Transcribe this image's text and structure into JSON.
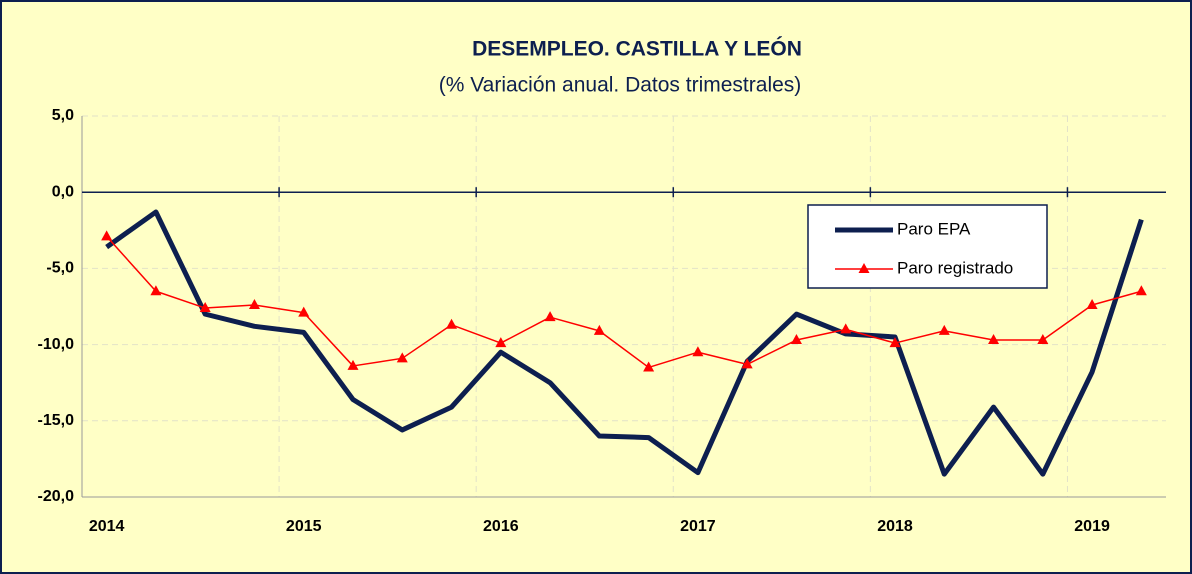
{
  "chart_data": {
    "type": "line",
    "title": "DESEMPLEO.  CASTILLA Y LEÓN",
    "subtitle": "(% Variación anual. Datos trimestrales)",
    "categories": [
      "2014",
      null,
      null,
      null,
      "2015",
      null,
      null,
      null,
      "2016",
      null,
      null,
      null,
      "2017",
      null,
      null,
      null,
      "2018",
      null,
      null,
      null,
      "2019",
      null
    ],
    "series": [
      {
        "name": "Paro EPA",
        "color": "#0d1f4f",
        "values": [
          -3.6,
          -1.3,
          -8.0,
          -8.8,
          -9.2,
          -13.6,
          -15.6,
          -14.1,
          -10.5,
          -12.5,
          -16.0,
          -16.1,
          -18.4,
          -11.1,
          -8.0,
          -9.3,
          -9.5,
          -18.5,
          -14.1,
          -18.5,
          -11.8,
          -1.8
        ]
      },
      {
        "name": "Paro registrado",
        "color": "#ff0000",
        "values": [
          -2.9,
          -6.5,
          -7.6,
          -7.4,
          -7.9,
          -11.4,
          -10.9,
          -8.7,
          -9.9,
          -8.2,
          -9.1,
          -11.5,
          -10.5,
          -11.3,
          -9.7,
          -9.0,
          -9.9,
          -9.1,
          -9.7,
          -9.7,
          -7.4,
          -6.5
        ]
      }
    ],
    "ylim": [
      -20,
      5
    ],
    "yticks": [
      {
        "value": 5,
        "label": "5,0"
      },
      {
        "value": 0,
        "label": "0,0"
      },
      {
        "value": -5,
        "label": "-5,0"
      },
      {
        "value": -10,
        "label": "-10,0"
      },
      {
        "value": -15,
        "label": "-15,0"
      },
      {
        "value": -20,
        "label": "-20,0"
      }
    ],
    "grid": true
  }
}
